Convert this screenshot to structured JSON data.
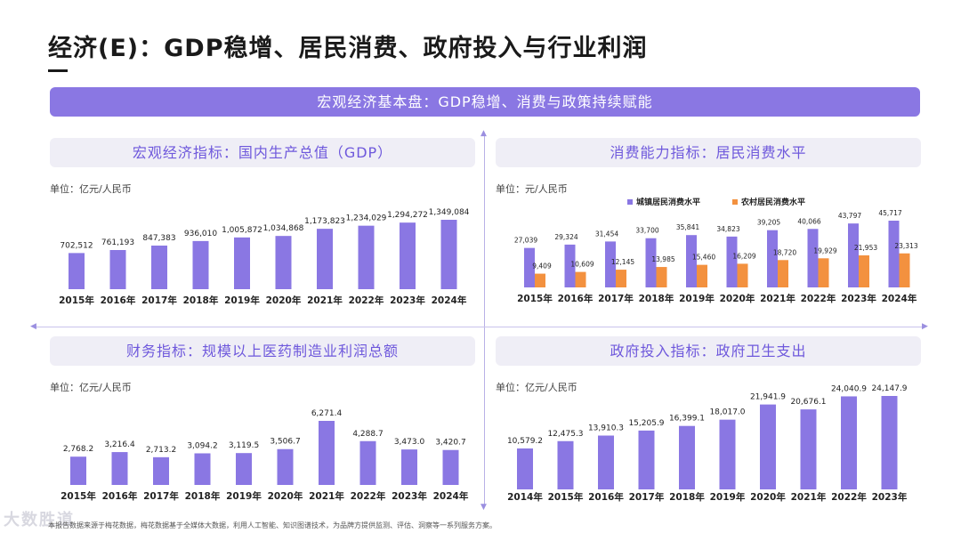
{
  "page": {
    "title": "经济(E)：GDP稳增、居民消费、政府投入与行业利润",
    "banner": "宏观经济基本盘：GDP稳增、消费与政策持续赋能",
    "footer": "本报告数据来源于梅花数据，梅花数据基于全媒体大数据，利用人工智能、知识图谱技术，为品牌方提供监测、评估、洞察等一系列服务方案。",
    "logo": "大数胜道"
  },
  "colors": {
    "purple": "#8a77e3",
    "orange": "#f3913f",
    "banner": "#8a77e3",
    "panel_head_text": "#6e58dc"
  },
  "panels": [
    {
      "head": "宏观经济指标：国内生产总值（GDP）",
      "unit": "单位：亿元/人民币"
    },
    {
      "head": "消费能力指标：居民消费水平",
      "unit": "单位：元/人民币"
    },
    {
      "head": "财务指标：规模以上医药制造业利润总额",
      "unit": "单位：亿元/人民币"
    },
    {
      "head": "政府投入指标：政府卫生支出",
      "unit": "单位：亿元/人民币"
    }
  ],
  "chart_data": [
    {
      "type": "bar",
      "title": "宏观经济指标：国内生产总值（GDP）",
      "ylabel": "单位：亿元/人民币",
      "categories": [
        "2015年",
        "2016年",
        "2017年",
        "2018年",
        "2019年",
        "2020年",
        "2021年",
        "2022年",
        "2023年",
        "2024年"
      ],
      "values": [
        702512,
        761193,
        847383,
        936010,
        1005872,
        1034868,
        1173823,
        1234029,
        1294272,
        1349084
      ],
      "labels": [
        "702,512",
        "761,193",
        "847,383",
        "936,010",
        "1,005,872",
        "1,034,868",
        "1,173,823",
        "1,234,029",
        "1,294,272",
        "1,349,084"
      ]
    },
    {
      "type": "bar",
      "title": "消费能力指标：居民消费水平",
      "ylabel": "单位：元/人民币",
      "legend": "top",
      "categories": [
        "2015年",
        "2016年",
        "2017年",
        "2018年",
        "2019年",
        "2020年",
        "2021年",
        "2022年",
        "2023年",
        "2024年"
      ],
      "series": [
        {
          "name": "城镇居民消费水平",
          "values": [
            27039,
            29324,
            31454,
            33700,
            35841,
            34823,
            39205,
            40066,
            43797,
            45717
          ],
          "labels": [
            "27,039",
            "29,324",
            "31,454",
            "33,700",
            "35,841",
            "34,823",
            "39,205",
            "40,066",
            "43,797",
            "45,717"
          ]
        },
        {
          "name": "农村居民消费水平",
          "values": [
            9409,
            10609,
            12145,
            13985,
            15460,
            16209,
            18720,
            19929,
            21953,
            23313
          ],
          "labels": [
            "9,409",
            "10,609",
            "12,145",
            "13,985",
            "15,460",
            "16,209",
            "18,720",
            "19,929",
            "21,953",
            "23,313"
          ]
        }
      ]
    },
    {
      "type": "bar",
      "title": "财务指标：规模以上医药制造业利润总额",
      "ylabel": "单位：亿元/人民币",
      "categories": [
        "2015年",
        "2016年",
        "2017年",
        "2018年",
        "2019年",
        "2020年",
        "2021年",
        "2022年",
        "2023年",
        "2024年"
      ],
      "values": [
        2768.2,
        3216.4,
        2713.2,
        3094.2,
        3119.5,
        3506.7,
        6271.4,
        4288.7,
        3473.0,
        3420.7
      ],
      "labels": [
        "2,768.2",
        "3,216.4",
        "2,713.2",
        "3,094.2",
        "3,119.5",
        "3,506.7",
        "6,271.4",
        "4,288.7",
        "3,473.0",
        "3,420.7"
      ]
    },
    {
      "type": "bar",
      "title": "政府投入指标：政府卫生支出",
      "ylabel": "单位：亿元/人民币",
      "categories": [
        "2014年",
        "2015年",
        "2016年",
        "2017年",
        "2018年",
        "2019年",
        "2020年",
        "2021年",
        "2022年",
        "2023年"
      ],
      "values": [
        10579.2,
        12475.3,
        13910.3,
        15205.9,
        16399.1,
        18017.0,
        21941.9,
        20676.1,
        24040.9,
        24147.9
      ],
      "labels": [
        "10,579.2",
        "12,475.3",
        "13,910.3",
        "15,205.9",
        "16,399.1",
        "18,017.0",
        "21,941.9",
        "20,676.1",
        "24,040.9",
        "24,147.9"
      ]
    }
  ]
}
